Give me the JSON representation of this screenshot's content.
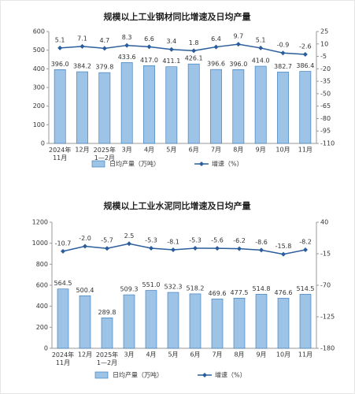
{
  "chart_data": [
    {
      "type": "bar-line",
      "title": "规模以上工业钢材同比增速及日均产量",
      "categories": [
        "2024年\n11月",
        "12月",
        "2025年\n1—2月",
        "3月",
        "4月",
        "5月",
        "6月",
        "7月",
        "8月",
        "9月",
        "10月",
        "11月"
      ],
      "series": [
        {
          "name": "日均产量（万吨）",
          "color": "#9dc3e6",
          "type": "bar",
          "values": [
            396,
            384.2,
            379.8,
            433.6,
            417,
            411.1,
            426.1,
            396.6,
            396,
            414,
            382.7,
            386.4
          ],
          "value_labels": [
            "396.0",
            "384.2",
            "379.8",
            "433.6",
            "417.0",
            "411.1",
            "426.1",
            "396.6",
            "396.0",
            "414.0",
            "382.7",
            "386.4"
          ]
        },
        {
          "name": "增速（%）",
          "color": "#2a5d9b",
          "type": "line",
          "axis": "y2",
          "values": [
            5.1,
            7.1,
            4.7,
            8.3,
            6.6,
            3.4,
            1.8,
            6.4,
            9.7,
            5.1,
            -0.9,
            -2.6
          ]
        }
      ],
      "ylim": [
        0,
        600
      ],
      "yticks": [
        0,
        100,
        200,
        300,
        400,
        500,
        600
      ],
      "y2lim": [
        -110,
        25
      ],
      "y2ticks": [
        25,
        10,
        -5,
        -20,
        -35,
        -50,
        -65,
        -80,
        -95,
        -110
      ]
    },
    {
      "type": "bar-line",
      "title": "规模以上工业水泥同比增速及日均产量",
      "categories": [
        "2024年\n11月",
        "12月",
        "2025年\n1—2月",
        "3月",
        "4月",
        "5月",
        "6月",
        "7月",
        "8月",
        "9月",
        "10月",
        "11月"
      ],
      "series": [
        {
          "name": "日均产量（万吨）",
          "color": "#9dc3e6",
          "type": "bar",
          "values": [
            564.5,
            500.4,
            289.8,
            509.3,
            551,
            532.3,
            518.2,
            469.6,
            477.5,
            514.8,
            476.6,
            514.5
          ],
          "value_labels": [
            "564.5",
            "500.4",
            "289.8",
            "509.3",
            "551.0",
            "532.3",
            "518.2",
            "469.6",
            "477.5",
            "514.8",
            "476.6",
            "514.5"
          ]
        },
        {
          "name": "增速（%）",
          "color": "#2a5d9b",
          "type": "line",
          "axis": "y2",
          "values": [
            -10.7,
            -2,
            -5.7,
            2.5,
            -5.3,
            -8.1,
            -5.3,
            -5.6,
            -6.2,
            -8.6,
            -15.8,
            -8.2
          ],
          "value_labels": [
            "-10.7",
            "-2.0",
            "-5.7",
            "2.5",
            "-5.3",
            "-8.1",
            "-5.3",
            "-5.6",
            "-6.2",
            "-8.6",
            "-15.8",
            "-8.2"
          ]
        }
      ],
      "ylim": [
        0,
        1200
      ],
      "yticks": [
        0,
        200,
        400,
        600,
        800,
        1000,
        1200
      ],
      "y2lim": [
        -180,
        40
      ],
      "y2ticks": [
        40,
        -15,
        -70,
        -125,
        -180
      ]
    }
  ]
}
